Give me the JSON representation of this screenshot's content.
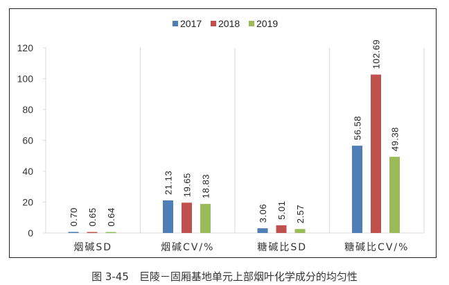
{
  "chart_data": {
    "type": "bar",
    "title": "",
    "caption": "图 3-45　巨陵－固厢基地单元上部烟叶化学成分的均匀性",
    "categories": [
      "烟碱SD",
      "烟碱CV/%",
      "糖碱比SD",
      "糖碱比CV/%"
    ],
    "series": [
      {
        "name": "2017",
        "color": "#4F7DB5",
        "values": [
          0.7,
          21.13,
          3.06,
          56.58
        ],
        "labels": [
          "0.70",
          "21.13",
          "3.06",
          "56.58"
        ]
      },
      {
        "name": "2018",
        "color": "#C0504D",
        "values": [
          0.65,
          19.65,
          5.01,
          102.69
        ],
        "labels": [
          "0.65",
          "19.65",
          "5.01",
          "102.69"
        ]
      },
      {
        "name": "2019",
        "color": "#9BBB59",
        "values": [
          0.64,
          18.83,
          2.57,
          49.38
        ],
        "labels": [
          "0.64",
          "18.83",
          "2.57",
          "49.38"
        ]
      }
    ],
    "ylim": [
      0,
      120
    ],
    "yticks": [
      "0",
      "20",
      "40",
      "60",
      "80",
      "100",
      "120"
    ],
    "xlabel": "",
    "ylabel": "",
    "grid": "vertical category separators",
    "legend": "top-center"
  }
}
